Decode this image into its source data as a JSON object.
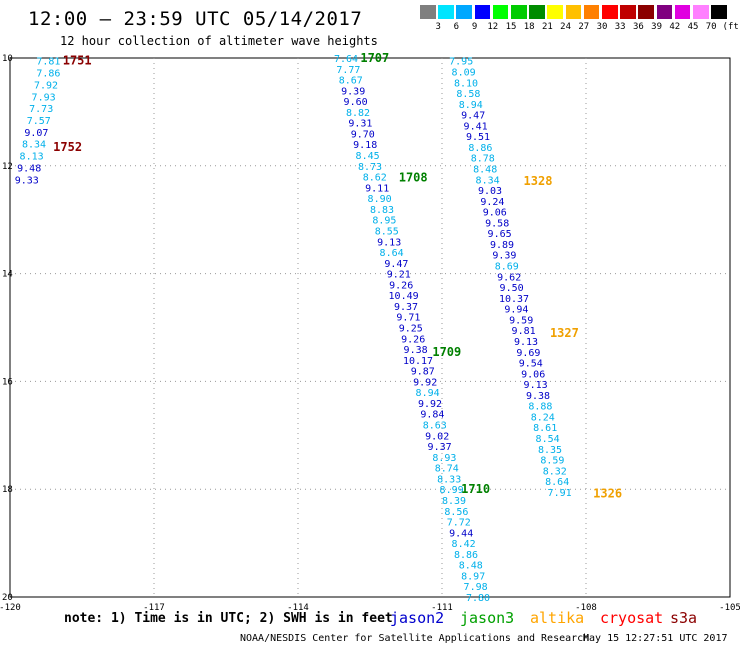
{
  "header": {
    "title": "12:00 – 23:59 UTC 05/14/2017",
    "subtitle": "12 hour collection of altimeter wave heights"
  },
  "legend": {
    "unit": "(ft)",
    "colors": [
      "#7f7f7f",
      "#00e5ff",
      "#00a8ff",
      "#0000ff",
      "#00ff00",
      "#00cc00",
      "#008c00",
      "#ffff00",
      "#ffc000",
      "#ff8000",
      "#ff0000",
      "#c00000",
      "#8b0000",
      "#800080",
      "#e000e0",
      "#ff80ff",
      "#000000"
    ],
    "labels": [
      "3",
      "6",
      "9",
      "12",
      "15",
      "18",
      "21",
      "24",
      "27",
      "30",
      "33",
      "36",
      "39",
      "42",
      "45",
      "70"
    ]
  },
  "axes": {
    "x_ticks": [
      "-120",
      "-117",
      "-114",
      "-111",
      "-108",
      "-105"
    ],
    "y_ticks": [
      "10",
      "12",
      "14",
      "16",
      "18",
      "20"
    ]
  },
  "colors": {
    "cyan": "#00b0ea",
    "blue": "#0000c8",
    "green": "#008000",
    "orange": "#f0a000",
    "darkred": "#8b0000"
  },
  "tracks": {
    "left": {
      "readings": [
        {
          "lon": -119.2,
          "lat": 10.05,
          "v": "7.81",
          "c": "cyan"
        },
        {
          "lon": -119.2,
          "lat": 10.27,
          "v": "7.86",
          "c": "cyan"
        },
        {
          "lon": -119.25,
          "lat": 10.49,
          "v": "7.92",
          "c": "cyan"
        },
        {
          "lon": -119.3,
          "lat": 10.71,
          "v": "7.93",
          "c": "cyan"
        },
        {
          "lon": -119.35,
          "lat": 10.93,
          "v": "7.73",
          "c": "cyan"
        },
        {
          "lon": -119.4,
          "lat": 11.15,
          "v": "7.57",
          "c": "cyan"
        },
        {
          "lon": -119.45,
          "lat": 11.37,
          "v": "9.07",
          "c": "blue"
        },
        {
          "lon": -119.5,
          "lat": 11.59,
          "v": "8.34",
          "c": "cyan"
        },
        {
          "lon": -119.55,
          "lat": 11.81,
          "v": "8.13",
          "c": "cyan"
        },
        {
          "lon": -119.6,
          "lat": 12.03,
          "v": "9.48",
          "c": "blue"
        },
        {
          "lon": -119.65,
          "lat": 12.25,
          "v": "9.33",
          "c": "blue"
        }
      ],
      "labels": [
        {
          "lon": -118.6,
          "lat": 10.05,
          "t": "1751",
          "c": "darkred"
        },
        {
          "lon": -118.8,
          "lat": 11.65,
          "t": "1752",
          "c": "darkred"
        }
      ]
    },
    "middle": {
      "readings": [
        {
          "lon": -113.0,
          "lat": 10.0,
          "v": "7.64",
          "c": "cyan"
        },
        {
          "lon": -112.95,
          "lat": 10.2,
          "v": "7.77",
          "c": "cyan"
        },
        {
          "lon": -112.9,
          "lat": 10.4,
          "v": "8.67",
          "c": "cyan"
        },
        {
          "lon": -112.85,
          "lat": 10.6,
          "v": "9.39",
          "c": "blue"
        },
        {
          "lon": -112.8,
          "lat": 10.8,
          "v": "9.60",
          "c": "blue"
        },
        {
          "lon": -112.75,
          "lat": 11.0,
          "v": "8.82",
          "c": "cyan"
        },
        {
          "lon": -112.7,
          "lat": 11.2,
          "v": "9.31",
          "c": "blue"
        },
        {
          "lon": -112.65,
          "lat": 11.4,
          "v": "9.70",
          "c": "blue"
        },
        {
          "lon": -112.6,
          "lat": 11.6,
          "v": "9.18",
          "c": "blue"
        },
        {
          "lon": -112.55,
          "lat": 11.8,
          "v": "8.45",
          "c": "cyan"
        },
        {
          "lon": -112.5,
          "lat": 12.0,
          "v": "8.73",
          "c": "cyan"
        },
        {
          "lon": -112.4,
          "lat": 12.2,
          "v": "8.62",
          "c": "cyan"
        },
        {
          "lon": -112.35,
          "lat": 12.4,
          "v": "9.11",
          "c": "blue"
        },
        {
          "lon": -112.3,
          "lat": 12.6,
          "v": "8.90",
          "c": "cyan"
        },
        {
          "lon": -112.25,
          "lat": 12.8,
          "v": "8.83",
          "c": "cyan"
        },
        {
          "lon": -112.2,
          "lat": 13.0,
          "v": "8.95",
          "c": "cyan"
        },
        {
          "lon": -112.15,
          "lat": 13.2,
          "v": "8.55",
          "c": "cyan"
        },
        {
          "lon": -112.1,
          "lat": 13.4,
          "v": "9.13",
          "c": "blue"
        },
        {
          "lon": -112.05,
          "lat": 13.6,
          "v": "8.64",
          "c": "cyan"
        },
        {
          "lon": -111.95,
          "lat": 13.8,
          "v": "9.47",
          "c": "blue"
        },
        {
          "lon": -111.9,
          "lat": 14.0,
          "v": "9.21",
          "c": "blue"
        },
        {
          "lon": -111.85,
          "lat": 14.2,
          "v": "9.26",
          "c": "blue"
        },
        {
          "lon": -111.8,
          "lat": 14.4,
          "v": "10.49",
          "c": "blue"
        },
        {
          "lon": -111.75,
          "lat": 14.6,
          "v": "9.37",
          "c": "blue"
        },
        {
          "lon": -111.7,
          "lat": 14.8,
          "v": "9.71",
          "c": "blue"
        },
        {
          "lon": -111.65,
          "lat": 15.0,
          "v": "9.25",
          "c": "blue"
        },
        {
          "lon": -111.6,
          "lat": 15.2,
          "v": "9.26",
          "c": "blue"
        },
        {
          "lon": -111.55,
          "lat": 15.4,
          "v": "9.38",
          "c": "blue"
        },
        {
          "lon": -111.5,
          "lat": 15.6,
          "v": "10.17",
          "c": "blue"
        },
        {
          "lon": -111.4,
          "lat": 15.8,
          "v": "9.87",
          "c": "blue"
        },
        {
          "lon": -111.35,
          "lat": 16.0,
          "v": "9.92",
          "c": "blue"
        },
        {
          "lon": -111.3,
          "lat": 16.2,
          "v": "8.94",
          "c": "cyan"
        },
        {
          "lon": -111.25,
          "lat": 16.4,
          "v": "9.92",
          "c": "blue"
        },
        {
          "lon": -111.2,
          "lat": 16.6,
          "v": "9.84",
          "c": "blue"
        },
        {
          "lon": -111.15,
          "lat": 16.8,
          "v": "8.63",
          "c": "cyan"
        },
        {
          "lon": -111.1,
          "lat": 17.0,
          "v": "9.02",
          "c": "blue"
        },
        {
          "lon": -111.05,
          "lat": 17.2,
          "v": "9.37",
          "c": "blue"
        },
        {
          "lon": -110.95,
          "lat": 17.4,
          "v": "8.93",
          "c": "cyan"
        },
        {
          "lon": -110.9,
          "lat": 17.6,
          "v": "8.74",
          "c": "cyan"
        },
        {
          "lon": -110.85,
          "lat": 17.8,
          "v": "8.33",
          "c": "cyan"
        },
        {
          "lon": -110.8,
          "lat": 18.0,
          "v": "8.99",
          "c": "cyan"
        },
        {
          "lon": -110.75,
          "lat": 18.2,
          "v": "8.39",
          "c": "cyan"
        },
        {
          "lon": -110.7,
          "lat": 18.4,
          "v": "8.56",
          "c": "cyan"
        },
        {
          "lon": -110.65,
          "lat": 18.6,
          "v": "7.72",
          "c": "cyan"
        },
        {
          "lon": -110.6,
          "lat": 18.8,
          "v": "9.44",
          "c": "blue"
        },
        {
          "lon": -110.55,
          "lat": 19.0,
          "v": "8.42",
          "c": "cyan"
        },
        {
          "lon": -110.5,
          "lat": 19.2,
          "v": "8.86",
          "c": "cyan"
        },
        {
          "lon": -110.4,
          "lat": 19.4,
          "v": "8.48",
          "c": "cyan"
        },
        {
          "lon": -110.35,
          "lat": 19.6,
          "v": "8.97",
          "c": "cyan"
        },
        {
          "lon": -110.3,
          "lat": 19.8,
          "v": "7.98",
          "c": "cyan"
        },
        {
          "lon": -110.25,
          "lat": 20.0,
          "v": "7.80",
          "c": "cyan"
        }
      ],
      "labels": [
        {
          "lon": -112.4,
          "lat": 10.0,
          "t": "1707",
          "c": "green"
        },
        {
          "lon": -111.6,
          "lat": 12.22,
          "t": "1708",
          "c": "green"
        },
        {
          "lon": -110.9,
          "lat": 15.45,
          "t": "1709",
          "c": "green"
        },
        {
          "lon": -110.3,
          "lat": 18.0,
          "t": "1710",
          "c": "green"
        }
      ]
    },
    "right": {
      "readings": [
        {
          "lon": -110.6,
          "lat": 10.05,
          "v": "7.95",
          "c": "cyan"
        },
        {
          "lon": -110.55,
          "lat": 10.25,
          "v": "8.09",
          "c": "cyan"
        },
        {
          "lon": -110.5,
          "lat": 10.45,
          "v": "8.10",
          "c": "cyan"
        },
        {
          "lon": -110.45,
          "lat": 10.65,
          "v": "8.58",
          "c": "cyan"
        },
        {
          "lon": -110.4,
          "lat": 10.85,
          "v": "8.94",
          "c": "cyan"
        },
        {
          "lon": -110.35,
          "lat": 11.05,
          "v": "9.47",
          "c": "blue"
        },
        {
          "lon": -110.3,
          "lat": 11.25,
          "v": "9.41",
          "c": "blue"
        },
        {
          "lon": -110.25,
          "lat": 11.45,
          "v": "9.51",
          "c": "blue"
        },
        {
          "lon": -110.2,
          "lat": 11.65,
          "v": "8.86",
          "c": "cyan"
        },
        {
          "lon": -110.15,
          "lat": 11.85,
          "v": "8.78",
          "c": "cyan"
        },
        {
          "lon": -110.1,
          "lat": 12.05,
          "v": "8.48",
          "c": "cyan"
        },
        {
          "lon": -110.05,
          "lat": 12.25,
          "v": "8.34",
          "c": "cyan"
        },
        {
          "lon": -110.0,
          "lat": 12.45,
          "v": "9.03",
          "c": "blue"
        },
        {
          "lon": -109.95,
          "lat": 12.65,
          "v": "9.24",
          "c": "blue"
        },
        {
          "lon": -109.9,
          "lat": 12.85,
          "v": "9.06",
          "c": "blue"
        },
        {
          "lon": -109.85,
          "lat": 13.05,
          "v": "9.58",
          "c": "blue"
        },
        {
          "lon": -109.8,
          "lat": 13.25,
          "v": "9.65",
          "c": "blue"
        },
        {
          "lon": -109.75,
          "lat": 13.45,
          "v": "9.89",
          "c": "blue"
        },
        {
          "lon": -109.7,
          "lat": 13.65,
          "v": "9.39",
          "c": "blue"
        },
        {
          "lon": -109.65,
          "lat": 13.85,
          "v": "8.69",
          "c": "cyan"
        },
        {
          "lon": -109.6,
          "lat": 14.05,
          "v": "9.62",
          "c": "blue"
        },
        {
          "lon": -109.55,
          "lat": 14.25,
          "v": "9.50",
          "c": "blue"
        },
        {
          "lon": -109.5,
          "lat": 14.45,
          "v": "10.37",
          "c": "blue"
        },
        {
          "lon": -109.45,
          "lat": 14.65,
          "v": "9.94",
          "c": "blue"
        },
        {
          "lon": -109.35,
          "lat": 14.85,
          "v": "9.59",
          "c": "blue"
        },
        {
          "lon": -109.3,
          "lat": 15.05,
          "v": "9.81",
          "c": "blue"
        },
        {
          "lon": -109.25,
          "lat": 15.25,
          "v": "9.13",
          "c": "blue"
        },
        {
          "lon": -109.2,
          "lat": 15.45,
          "v": "9.69",
          "c": "blue"
        },
        {
          "lon": -109.15,
          "lat": 15.65,
          "v": "9.54",
          "c": "blue"
        },
        {
          "lon": -109.1,
          "lat": 15.85,
          "v": "9.06",
          "c": "blue"
        },
        {
          "lon": -109.05,
          "lat": 16.05,
          "v": "9.13",
          "c": "blue"
        },
        {
          "lon": -109.0,
          "lat": 16.25,
          "v": "9.38",
          "c": "blue"
        },
        {
          "lon": -108.95,
          "lat": 16.45,
          "v": "8.88",
          "c": "cyan"
        },
        {
          "lon": -108.9,
          "lat": 16.65,
          "v": "8.24",
          "c": "cyan"
        },
        {
          "lon": -108.85,
          "lat": 16.85,
          "v": "8.61",
          "c": "cyan"
        },
        {
          "lon": -108.8,
          "lat": 17.05,
          "v": "8.54",
          "c": "cyan"
        },
        {
          "lon": -108.75,
          "lat": 17.25,
          "v": "8.35",
          "c": "cyan"
        },
        {
          "lon": -108.7,
          "lat": 17.45,
          "v": "8.59",
          "c": "cyan"
        },
        {
          "lon": -108.65,
          "lat": 17.65,
          "v": "8.32",
          "c": "cyan"
        },
        {
          "lon": -108.6,
          "lat": 17.85,
          "v": "8.64",
          "c": "cyan"
        },
        {
          "lon": -108.55,
          "lat": 18.05,
          "v": "7.91",
          "c": "cyan"
        }
      ],
      "labels": [
        {
          "lon": -109.0,
          "lat": 12.28,
          "t": "1328",
          "c": "orange"
        },
        {
          "lon": -108.45,
          "lat": 15.1,
          "t": "1327",
          "c": "orange"
        },
        {
          "lon": -107.55,
          "lat": 18.08,
          "t": "1326",
          "c": "orange"
        }
      ]
    }
  },
  "notes": {
    "text": "note: 1) Time is in UTC; 2) SWH is in feet",
    "satellites": [
      {
        "name": "jason2",
        "c": "#0000cd"
      },
      {
        "name": "jason3",
        "c": "#00a000"
      },
      {
        "name": "altika",
        "c": "#ffa500"
      },
      {
        "name": "cryosat",
        "c": "#ff0000"
      },
      {
        "name": "s3a",
        "c": "#8b0000"
      }
    ]
  },
  "footer": {
    "credit": "NOAA/NESDIS Center for Satellite Applications and Research",
    "timestamp": "May 15 12:27:51 UTC 2017"
  }
}
